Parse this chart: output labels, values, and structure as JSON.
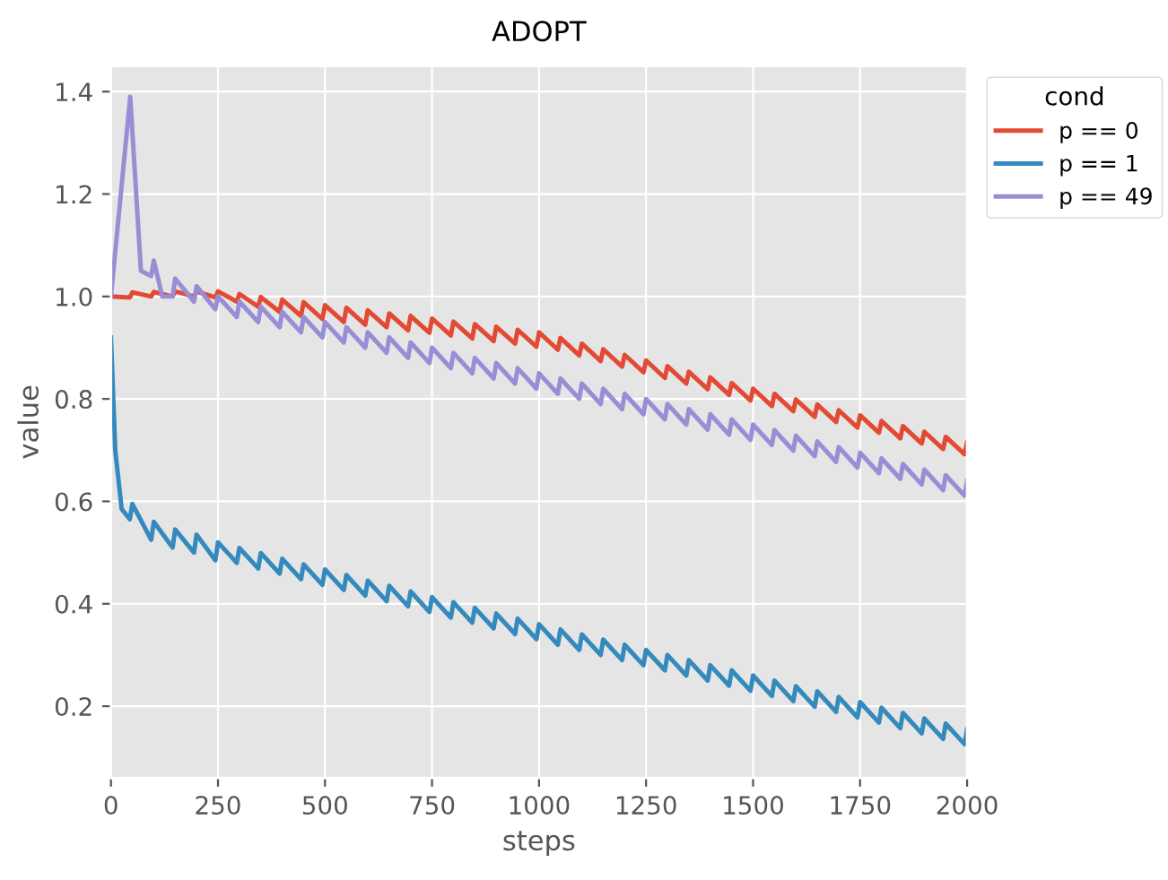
{
  "chart_data": {
    "type": "line",
    "title": "ADOPT",
    "xlabel": "steps",
    "ylabel": "value",
    "legend_title": "cond",
    "legend": "top right",
    "grid": true,
    "xlim": [
      0,
      2000
    ],
    "xticks": [
      0,
      250,
      500,
      750,
      1000,
      1250,
      1500,
      1750,
      2000
    ],
    "ylim": [
      0.06,
      1.45
    ],
    "yticks": [
      0.2,
      0.4,
      0.6,
      0.8,
      {
        "value": 1,
        "label": "1.0"
      },
      1.2,
      1.4
    ],
    "series": [
      {
        "name": "p == 0",
        "color": "#e24a33",
        "x": [
          0,
          44,
          50,
          94,
          100,
          144,
          150,
          194,
          200,
          244,
          250,
          294,
          300,
          344,
          350,
          394,
          400,
          444,
          450,
          494,
          500,
          544,
          550,
          594,
          600,
          644,
          650,
          694,
          700,
          744,
          750,
          794,
          800,
          844,
          850,
          894,
          900,
          944,
          950,
          994,
          1000,
          1044,
          1050,
          1094,
          1100,
          1144,
          1150,
          1194,
          1200,
          1244,
          1250,
          1294,
          1300,
          1344,
          1350,
          1394,
          1400,
          1444,
          1450,
          1494,
          1500,
          1544,
          1550,
          1594,
          1600,
          1644,
          1650,
          1694,
          1700,
          1744,
          1750,
          1794,
          1800,
          1844,
          1850,
          1894,
          1900,
          1944,
          1950,
          1994,
          2000
        ],
        "values": [
          1.0,
          0.998,
          1.008,
          1.0,
          1.009,
          1.0,
          1.01,
          1.0,
          1.01,
          0.998,
          1.01,
          0.99,
          1.005,
          0.98,
          0.999,
          0.97,
          0.994,
          0.962,
          0.989,
          0.956,
          0.983,
          0.95,
          0.978,
          0.945,
          0.973,
          0.94,
          0.967,
          0.934,
          0.962,
          0.929,
          0.957,
          0.924,
          0.951,
          0.918,
          0.946,
          0.913,
          0.941,
          0.908,
          0.935,
          0.902,
          0.93,
          0.896,
          0.919,
          0.885,
          0.908,
          0.874,
          0.897,
          0.863,
          0.886,
          0.852,
          0.875,
          0.841,
          0.864,
          0.83,
          0.853,
          0.819,
          0.842,
          0.808,
          0.831,
          0.797,
          0.82,
          0.786,
          0.81,
          0.776,
          0.799,
          0.765,
          0.789,
          0.755,
          0.778,
          0.744,
          0.768,
          0.734,
          0.757,
          0.723,
          0.747,
          0.713,
          0.736,
          0.702,
          0.726,
          0.692,
          0.715
        ]
      },
      {
        "name": "p == 1",
        "color": "#348abd",
        "x": [
          0,
          10,
          25,
          44,
          50,
          94,
          100,
          144,
          150,
          194,
          200,
          244,
          250,
          294,
          300,
          344,
          350,
          394,
          400,
          444,
          450,
          494,
          500,
          544,
          550,
          594,
          600,
          644,
          650,
          694,
          700,
          744,
          750,
          794,
          800,
          844,
          850,
          894,
          900,
          944,
          950,
          994,
          1000,
          1044,
          1050,
          1094,
          1100,
          1144,
          1150,
          1194,
          1200,
          1244,
          1250,
          1294,
          1300,
          1344,
          1350,
          1394,
          1400,
          1444,
          1450,
          1494,
          1500,
          1544,
          1550,
          1594,
          1600,
          1644,
          1650,
          1694,
          1700,
          1744,
          1750,
          1794,
          1800,
          1844,
          1850,
          1894,
          1900,
          1944,
          1950,
          1994,
          2000
        ],
        "values": [
          0.92,
          0.7,
          0.585,
          0.565,
          0.595,
          0.525,
          0.56,
          0.51,
          0.545,
          0.5,
          0.535,
          0.485,
          0.52,
          0.48,
          0.509,
          0.469,
          0.499,
          0.459,
          0.488,
          0.448,
          0.477,
          0.437,
          0.467,
          0.427,
          0.456,
          0.416,
          0.445,
          0.405,
          0.435,
          0.395,
          0.424,
          0.384,
          0.413,
          0.373,
          0.403,
          0.363,
          0.392,
          0.352,
          0.381,
          0.341,
          0.371,
          0.331,
          0.36,
          0.32,
          0.35,
          0.31,
          0.34,
          0.3,
          0.33,
          0.29,
          0.32,
          0.28,
          0.31,
          0.27,
          0.3,
          0.26,
          0.29,
          0.25,
          0.28,
          0.24,
          0.27,
          0.23,
          0.26,
          0.22,
          0.25,
          0.21,
          0.239,
          0.199,
          0.229,
          0.189,
          0.218,
          0.178,
          0.208,
          0.168,
          0.197,
          0.157,
          0.187,
          0.147,
          0.176,
          0.136,
          0.166,
          0.126,
          0.155
        ]
      },
      {
        "name": "p == 49",
        "color": "#988ed5",
        "x": [
          0,
          45,
          70,
          94,
          100,
          120,
          144,
          150,
          194,
          200,
          244,
          250,
          294,
          300,
          344,
          350,
          394,
          400,
          444,
          450,
          494,
          500,
          544,
          550,
          594,
          600,
          644,
          650,
          694,
          700,
          744,
          750,
          794,
          800,
          844,
          850,
          894,
          900,
          944,
          950,
          994,
          1000,
          1044,
          1050,
          1094,
          1100,
          1144,
          1150,
          1194,
          1200,
          1244,
          1250,
          1294,
          1300,
          1344,
          1350,
          1394,
          1400,
          1444,
          1450,
          1494,
          1500,
          1544,
          1550,
          1594,
          1600,
          1644,
          1650,
          1694,
          1700,
          1744,
          1750,
          1794,
          1800,
          1844,
          1850,
          1894,
          1900,
          1944,
          1950,
          1994,
          2000
        ],
        "values": [
          1.0,
          1.39,
          1.05,
          1.04,
          1.07,
          1.0,
          1.0,
          1.035,
          0.99,
          1.02,
          0.975,
          1.0,
          0.96,
          0.99,
          0.95,
          0.98,
          0.94,
          0.97,
          0.93,
          0.96,
          0.92,
          0.95,
          0.91,
          0.94,
          0.9,
          0.93,
          0.89,
          0.92,
          0.88,
          0.91,
          0.87,
          0.9,
          0.86,
          0.89,
          0.85,
          0.88,
          0.84,
          0.87,
          0.83,
          0.86,
          0.82,
          0.85,
          0.81,
          0.84,
          0.8,
          0.83,
          0.79,
          0.82,
          0.78,
          0.81,
          0.77,
          0.8,
          0.76,
          0.79,
          0.75,
          0.78,
          0.74,
          0.77,
          0.73,
          0.76,
          0.72,
          0.75,
          0.71,
          0.739,
          0.699,
          0.728,
          0.688,
          0.717,
          0.677,
          0.706,
          0.666,
          0.695,
          0.655,
          0.684,
          0.644,
          0.673,
          0.633,
          0.662,
          0.622,
          0.651,
          0.611,
          0.64
        ]
      }
    ]
  }
}
